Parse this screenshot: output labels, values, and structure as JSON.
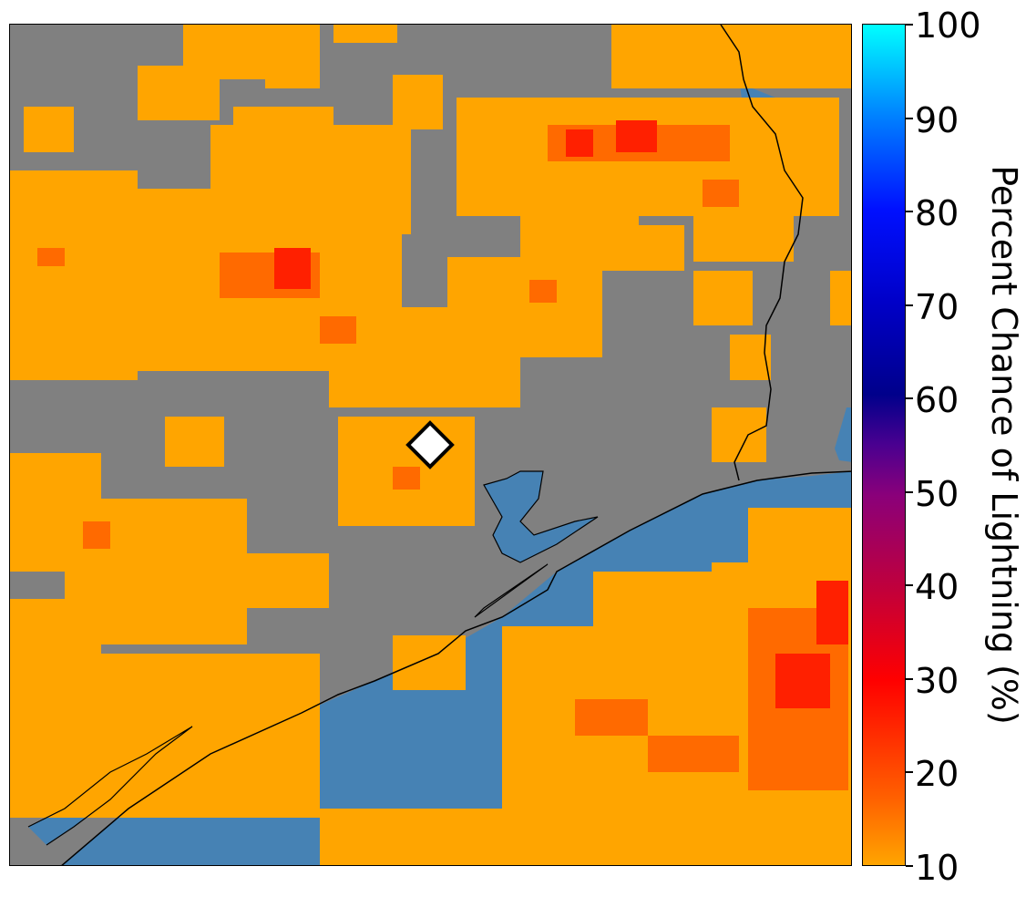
{
  "map": {
    "land_color": "#808080",
    "water_color": "#4682b4",
    "lightning_low_color": "#ffa500",
    "lightning_mid_color": "#ff4500",
    "lightning_high_color": "#ff0000",
    "coastline_color": "#000000",
    "marker": {
      "shape": "diamond",
      "fill": "#ffffff",
      "stroke": "#000000"
    }
  },
  "colorbar": {
    "label": "Percent Chance of Lightning (%)",
    "min": 10,
    "max": 100,
    "ticks": [
      "10",
      "20",
      "30",
      "40",
      "50",
      "60",
      "70",
      "80",
      "90",
      "100"
    ],
    "colors": [
      "#ffa500",
      "#ff4500",
      "#ff0000",
      "#c0003c",
      "#8a007a",
      "#4a0090",
      "#00008b",
      "#0000ff",
      "#0080ff",
      "#00ffff"
    ]
  }
}
